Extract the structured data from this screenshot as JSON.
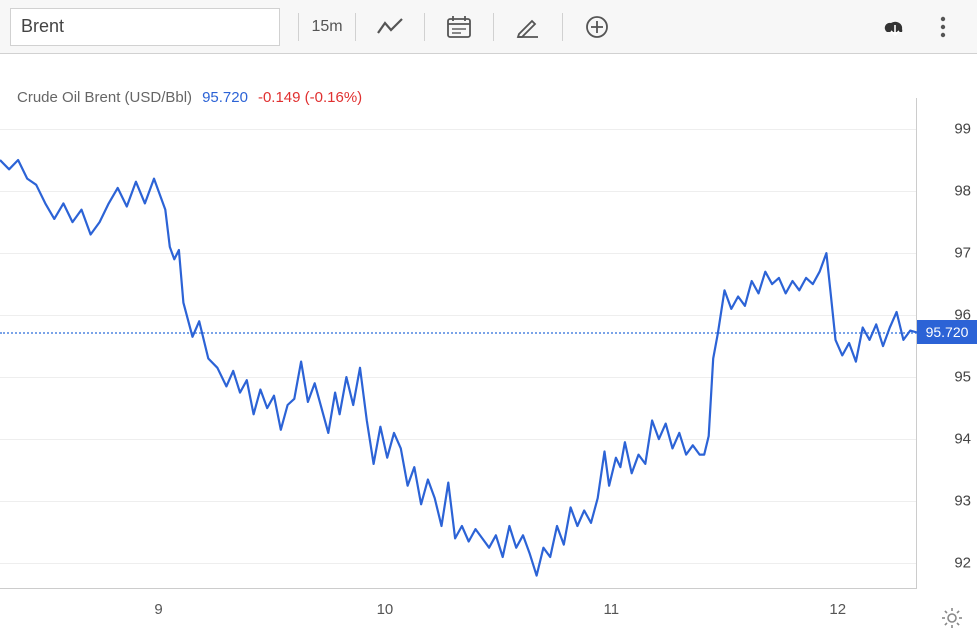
{
  "toolbar": {
    "symbol": "Brent",
    "interval": "15m"
  },
  "header": {
    "title": "Crude Oil Brent (USD/Bbl)",
    "price": "95.720",
    "change": "-0.149 (-0.16%)"
  },
  "chart": {
    "type": "line",
    "line_color": "#2c63d6",
    "line_width": 2.2,
    "background": "#ffffff",
    "grid_color": "#eeeeee",
    "current_line_color": "#7aa3e8",
    "current_badge_color": "#2c63d6",
    "text_color": "#555555",
    "title_color": "#666666",
    "price_color": "#2c63d6",
    "change_color": "#e03030",
    "ylim": [
      91.6,
      99.5
    ],
    "y_ticks": [
      92,
      93,
      94,
      95,
      96,
      97,
      98,
      99
    ],
    "current_value": 95.72,
    "x_range_days": [
      8.3,
      12.35
    ],
    "x_ticks": [
      9,
      10,
      11,
      12
    ],
    "x_tick_labels": [
      "9",
      "10",
      "11",
      "12"
    ],
    "series": [
      [
        8.3,
        98.5
      ],
      [
        8.34,
        98.35
      ],
      [
        8.38,
        98.5
      ],
      [
        8.42,
        98.2
      ],
      [
        8.46,
        98.1
      ],
      [
        8.5,
        97.8
      ],
      [
        8.54,
        97.55
      ],
      [
        8.58,
        97.8
      ],
      [
        8.62,
        97.5
      ],
      [
        8.66,
        97.7
      ],
      [
        8.7,
        97.3
      ],
      [
        8.74,
        97.5
      ],
      [
        8.78,
        97.8
      ],
      [
        8.82,
        98.05
      ],
      [
        8.86,
        97.75
      ],
      [
        8.9,
        98.15
      ],
      [
        8.94,
        97.8
      ],
      [
        8.98,
        98.2
      ],
      [
        9.0,
        98.0
      ],
      [
        9.03,
        97.7
      ],
      [
        9.05,
        97.1
      ],
      [
        9.07,
        96.9
      ],
      [
        9.09,
        97.05
      ],
      [
        9.11,
        96.2
      ],
      [
        9.15,
        95.65
      ],
      [
        9.18,
        95.9
      ],
      [
        9.22,
        95.3
      ],
      [
        9.26,
        95.15
      ],
      [
        9.3,
        94.85
      ],
      [
        9.33,
        95.1
      ],
      [
        9.36,
        94.75
      ],
      [
        9.39,
        94.95
      ],
      [
        9.42,
        94.4
      ],
      [
        9.45,
        94.8
      ],
      [
        9.48,
        94.5
      ],
      [
        9.51,
        94.7
      ],
      [
        9.54,
        94.15
      ],
      [
        9.57,
        94.55
      ],
      [
        9.6,
        94.65
      ],
      [
        9.63,
        95.25
      ],
      [
        9.66,
        94.6
      ],
      [
        9.69,
        94.9
      ],
      [
        9.72,
        94.5
      ],
      [
        9.75,
        94.1
      ],
      [
        9.78,
        94.75
      ],
      [
        9.8,
        94.4
      ],
      [
        9.83,
        95.0
      ],
      [
        9.86,
        94.55
      ],
      [
        9.89,
        95.15
      ],
      [
        9.92,
        94.3
      ],
      [
        9.95,
        93.6
      ],
      [
        9.98,
        94.2
      ],
      [
        10.01,
        93.7
      ],
      [
        10.04,
        94.1
      ],
      [
        10.07,
        93.85
      ],
      [
        10.1,
        93.25
      ],
      [
        10.13,
        93.55
      ],
      [
        10.16,
        92.95
      ],
      [
        10.19,
        93.35
      ],
      [
        10.22,
        93.05
      ],
      [
        10.25,
        92.6
      ],
      [
        10.28,
        93.3
      ],
      [
        10.31,
        92.4
      ],
      [
        10.34,
        92.6
      ],
      [
        10.37,
        92.35
      ],
      [
        10.4,
        92.55
      ],
      [
        10.43,
        92.4
      ],
      [
        10.46,
        92.25
      ],
      [
        10.49,
        92.45
      ],
      [
        10.52,
        92.1
      ],
      [
        10.55,
        92.6
      ],
      [
        10.58,
        92.25
      ],
      [
        10.61,
        92.45
      ],
      [
        10.64,
        92.15
      ],
      [
        10.67,
        91.8
      ],
      [
        10.7,
        92.25
      ],
      [
        10.73,
        92.1
      ],
      [
        10.76,
        92.6
      ],
      [
        10.79,
        92.3
      ],
      [
        10.82,
        92.9
      ],
      [
        10.85,
        92.6
      ],
      [
        10.88,
        92.85
      ],
      [
        10.91,
        92.65
      ],
      [
        10.94,
        93.05
      ],
      [
        10.97,
        93.8
      ],
      [
        10.99,
        93.25
      ],
      [
        11.02,
        93.7
      ],
      [
        11.04,
        93.55
      ],
      [
        11.06,
        93.95
      ],
      [
        11.09,
        93.45
      ],
      [
        11.12,
        93.75
      ],
      [
        11.15,
        93.6
      ],
      [
        11.18,
        94.3
      ],
      [
        11.21,
        94.0
      ],
      [
        11.24,
        94.25
      ],
      [
        11.27,
        93.85
      ],
      [
        11.3,
        94.1
      ],
      [
        11.33,
        93.75
      ],
      [
        11.36,
        93.9
      ],
      [
        11.39,
        93.75
      ],
      [
        11.41,
        93.75
      ],
      [
        11.43,
        94.05
      ],
      [
        11.45,
        95.3
      ],
      [
        11.47,
        95.7
      ],
      [
        11.5,
        96.4
      ],
      [
        11.53,
        96.1
      ],
      [
        11.56,
        96.3
      ],
      [
        11.59,
        96.15
      ],
      [
        11.62,
        96.55
      ],
      [
        11.65,
        96.35
      ],
      [
        11.68,
        96.7
      ],
      [
        11.71,
        96.5
      ],
      [
        11.74,
        96.6
      ],
      [
        11.77,
        96.35
      ],
      [
        11.8,
        96.55
      ],
      [
        11.83,
        96.4
      ],
      [
        11.86,
        96.6
      ],
      [
        11.89,
        96.5
      ],
      [
        11.92,
        96.7
      ],
      [
        11.95,
        97.0
      ],
      [
        11.97,
        96.3
      ],
      [
        11.99,
        95.6
      ],
      [
        12.02,
        95.35
      ],
      [
        12.05,
        95.55
      ],
      [
        12.08,
        95.25
      ],
      [
        12.11,
        95.8
      ],
      [
        12.14,
        95.6
      ],
      [
        12.17,
        95.85
      ],
      [
        12.2,
        95.5
      ],
      [
        12.23,
        95.8
      ],
      [
        12.26,
        96.05
      ],
      [
        12.29,
        95.6
      ],
      [
        12.32,
        95.75
      ],
      [
        12.35,
        95.72
      ]
    ]
  }
}
